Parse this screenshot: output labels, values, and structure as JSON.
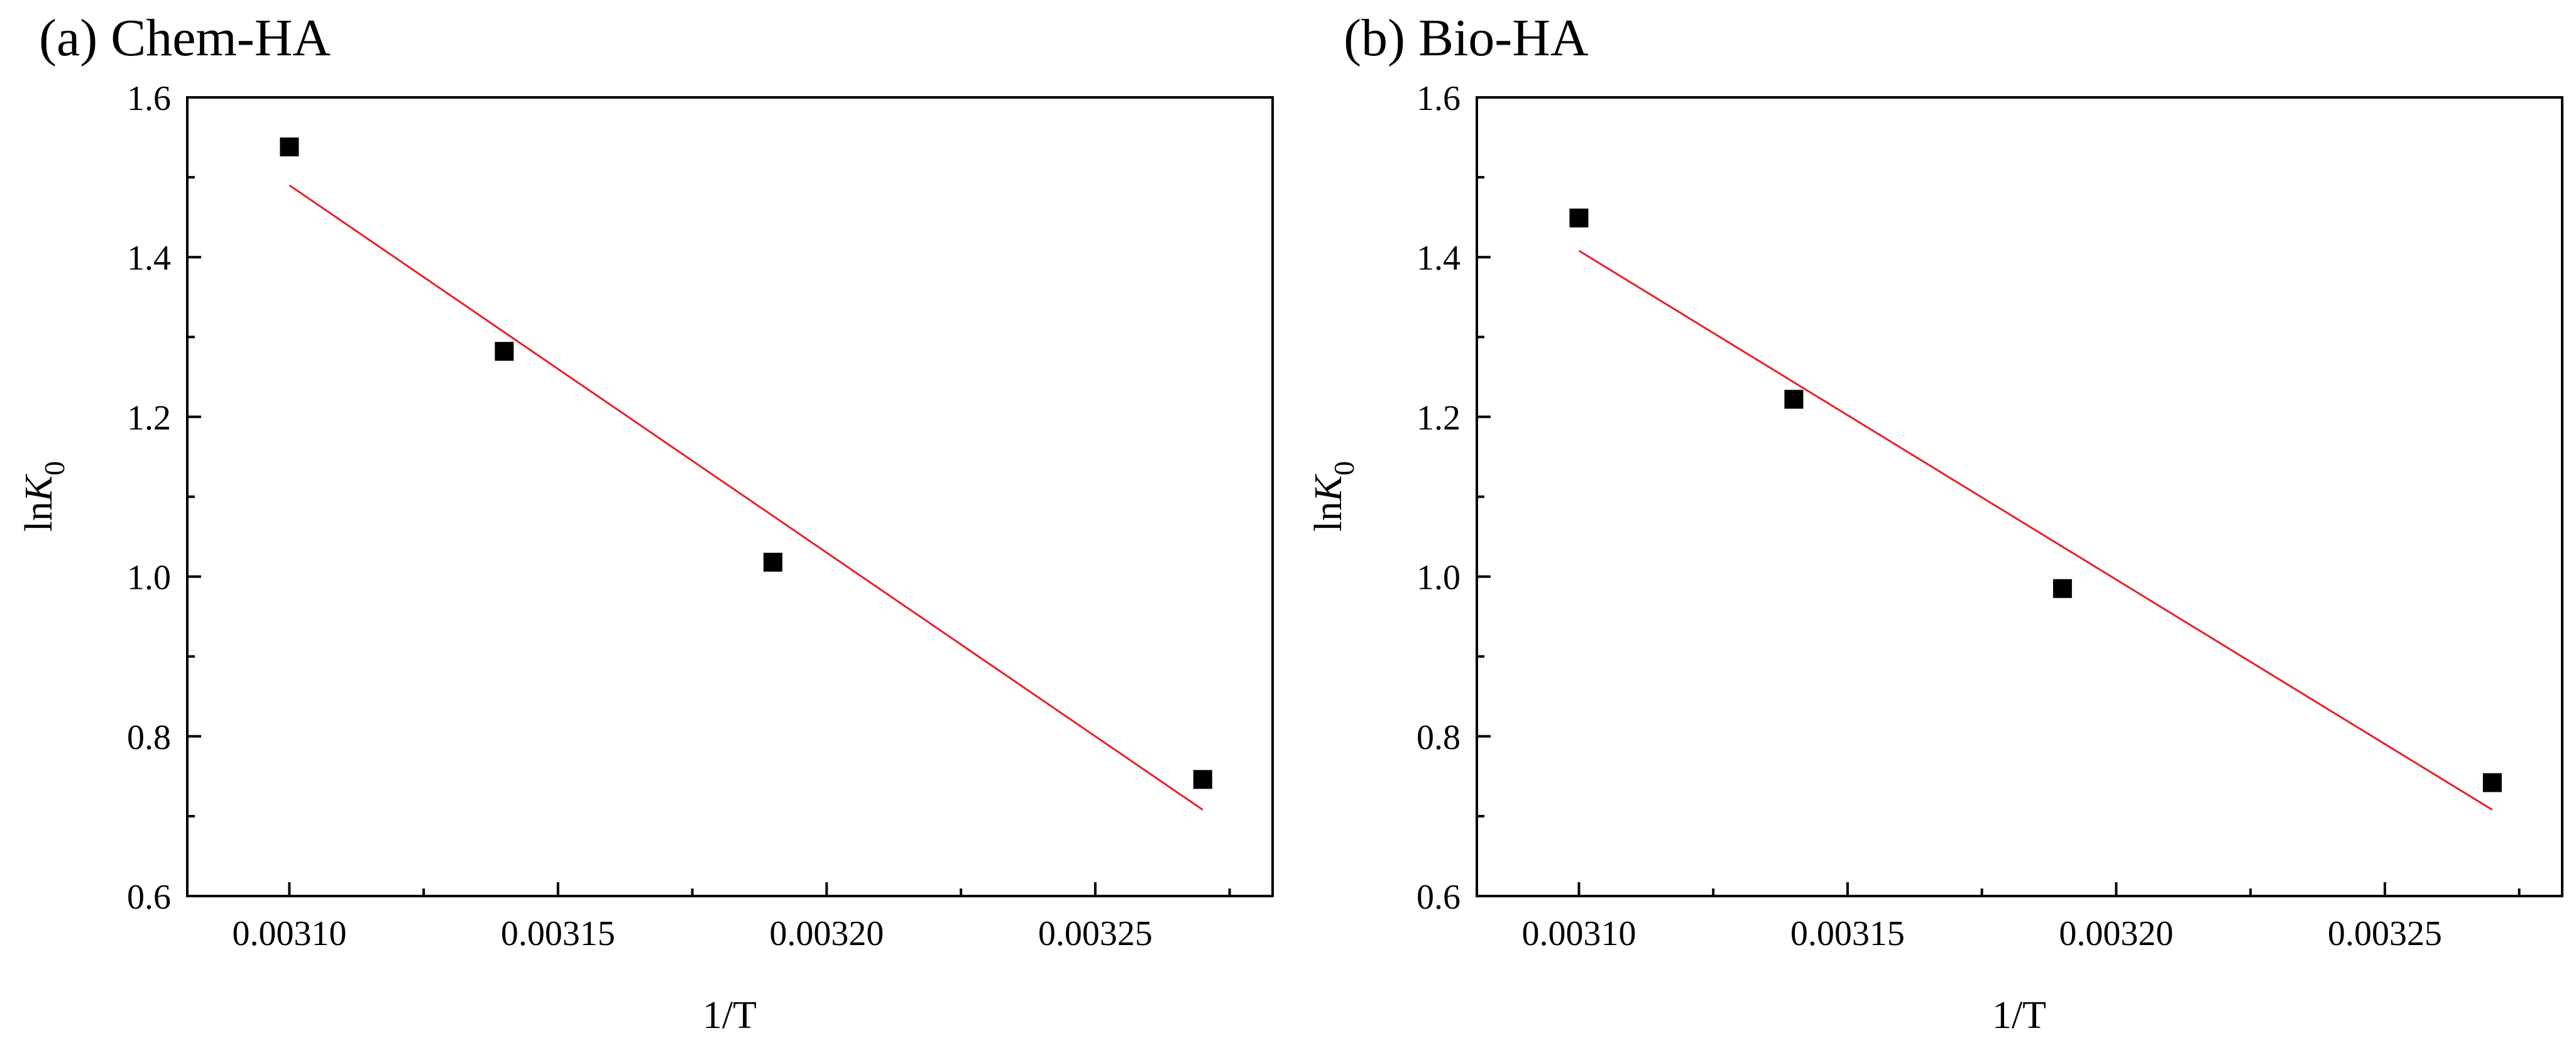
{
  "colors": {
    "points": "#000000",
    "fit_line": "#e8202a",
    "axes": "#000000",
    "background": "#ffffff"
  },
  "chart_data": [
    {
      "id": "a",
      "type": "scatter",
      "title": "(a) Chem-HA",
      "xlabel": "1/T",
      "ylabel": {
        "prefix": "ln",
        "italic": "K",
        "subscript": "0"
      },
      "xlim": [
        0.003081,
        0.003283
      ],
      "ylim": [
        0.6,
        1.6
      ],
      "xticks": [
        "0.00310",
        "0.00315",
        "0.00320",
        "0.00325"
      ],
      "xtick_values": [
        0.0031,
        0.00315,
        0.0032,
        0.00325
      ],
      "yticks": [
        "0.6",
        "0.8",
        "1.0",
        "1.2",
        "1.4",
        "1.6"
      ],
      "ytick_values": [
        0.6,
        0.8,
        1.0,
        1.2,
        1.4,
        1.6
      ],
      "grid": false,
      "points": {
        "name": "data",
        "marker": "square",
        "x": [
          0.0031,
          0.00314,
          0.00319,
          0.00327
        ],
        "y": [
          1.538,
          1.282,
          1.018,
          0.746
        ]
      },
      "fit": {
        "name": "linear fit",
        "x": [
          0.0031,
          0.00327
        ],
        "y": [
          1.49,
          0.708
        ]
      }
    },
    {
      "id": "b",
      "type": "scatter",
      "title": "(b) Bio-HA",
      "xlabel": "1/T",
      "ylabel": {
        "prefix": "ln",
        "italic": "K",
        "subscript": "0"
      },
      "xlim": [
        0.003081,
        0.003283
      ],
      "ylim": [
        0.6,
        1.6
      ],
      "xticks": [
        "0.00310",
        "0.00315",
        "0.00320",
        "0.00325"
      ],
      "xtick_values": [
        0.0031,
        0.00315,
        0.0032,
        0.00325
      ],
      "yticks": [
        "0.6",
        "0.8",
        "1.0",
        "1.2",
        "1.4",
        "1.6"
      ],
      "ytick_values": [
        0.6,
        0.8,
        1.0,
        1.2,
        1.4,
        1.6
      ],
      "grid": false,
      "points": {
        "name": "data",
        "marker": "square",
        "x": [
          0.0031,
          0.00314,
          0.00319,
          0.00327
        ],
        "y": [
          1.449,
          1.222,
          0.985,
          0.742
        ]
      },
      "fit": {
        "name": "linear fit",
        "x": [
          0.0031,
          0.00327
        ],
        "y": [
          1.408,
          0.708
        ]
      }
    }
  ]
}
